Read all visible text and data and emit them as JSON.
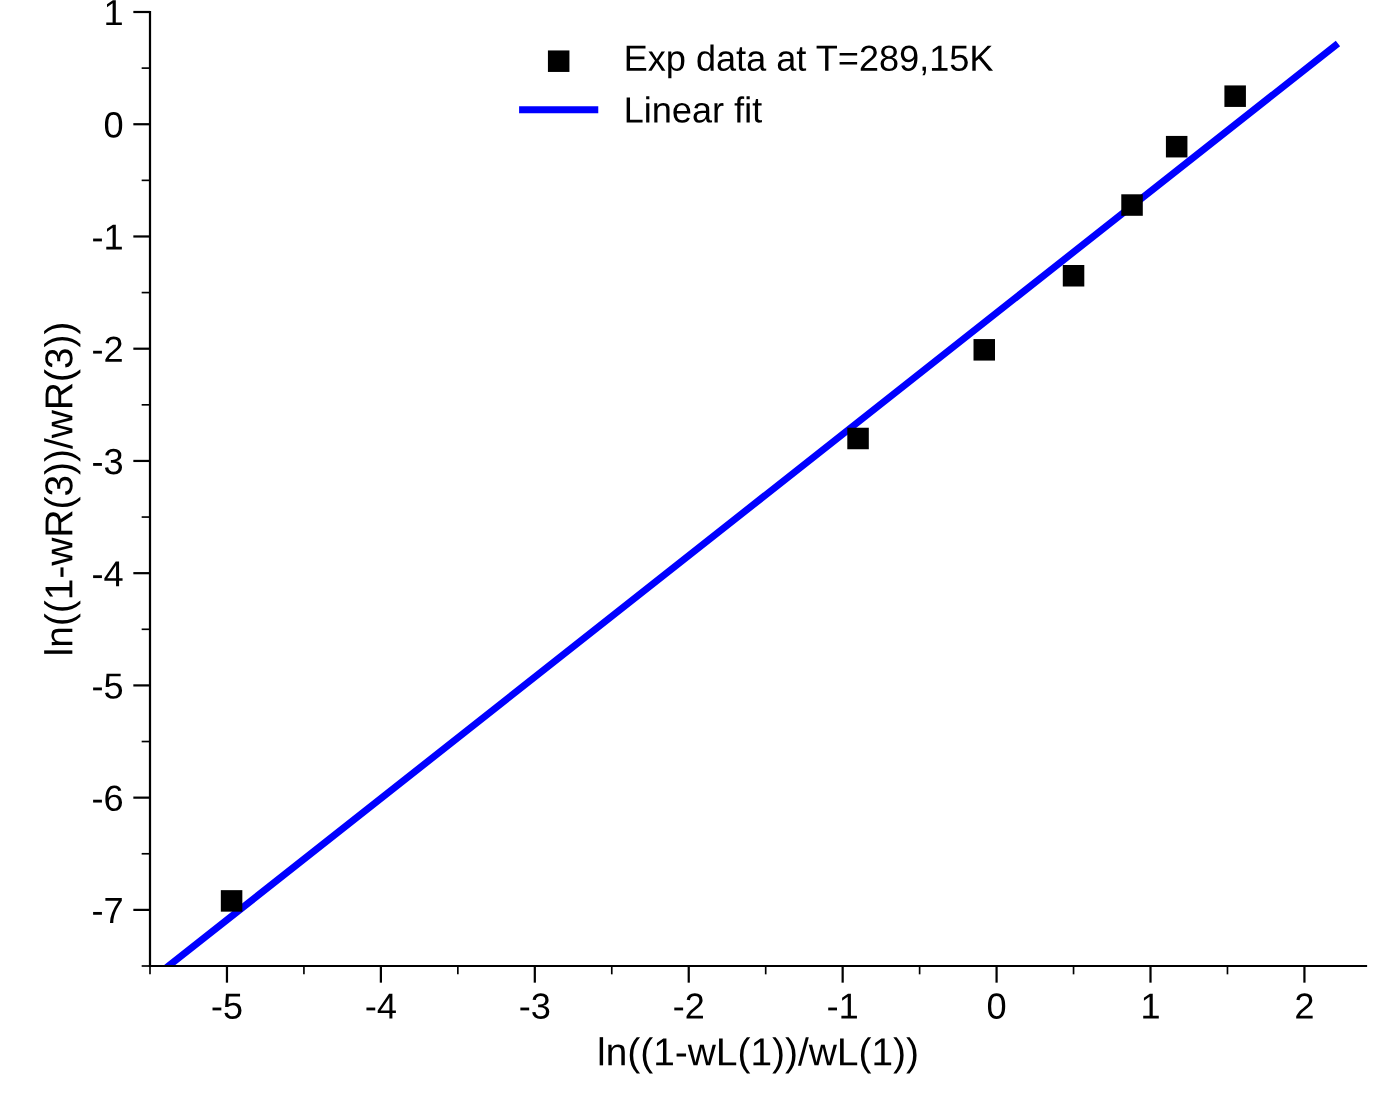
{
  "chart_data": {
    "type": "scatter",
    "xlabel": "ln((1-wL(1))/wL(1))",
    "ylabel": "ln((1-wR(3))/wR(3))",
    "series": [
      {
        "name": "Exp data at T=289,15K",
        "color": "#000000",
        "marker": "square",
        "x": [
          -4.97,
          -0.9,
          -0.08,
          0.5,
          0.88,
          1.17,
          1.55
        ],
        "values": [
          -6.92,
          -2.8,
          -2.01,
          -1.35,
          -0.72,
          -0.2,
          0.25
        ]
      },
      {
        "name": "Linear fit",
        "type": "line",
        "color": "#0000ff",
        "marker": "none",
        "line_style": "solid",
        "x": [
          -5.38,
          2.2
        ],
        "values": [
          -7.5,
          0.7
        ]
      }
    ],
    "xlim": [
      -5.5,
      2.4
    ],
    "ylim": [
      -7.5,
      1
    ],
    "xticks": [
      -5,
      -4,
      -3,
      -2,
      -1,
      0,
      1,
      2
    ],
    "yticks": [
      -7,
      -6,
      -5,
      -4,
      -3,
      -2,
      -1,
      0,
      1
    ],
    "grid": false,
    "legend": "top"
  }
}
